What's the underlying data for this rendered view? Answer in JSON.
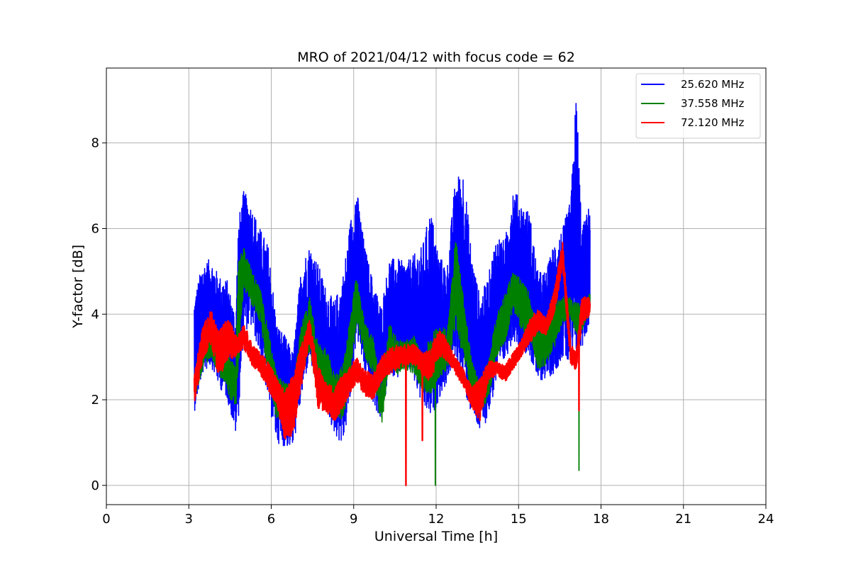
{
  "chart_data": {
    "type": "line",
    "title": "MRO of 2021/04/12 with focus code = 62",
    "xlabel": "Universal Time [h]",
    "ylabel": "Y-factor [dB]",
    "xlim": [
      0,
      24
    ],
    "ylim": [
      -0.45,
      9.75
    ],
    "xticks": [
      0,
      3,
      6,
      9,
      12,
      15,
      18,
      21,
      24
    ],
    "yticks": [
      0,
      2,
      4,
      6,
      8
    ],
    "grid": true,
    "legend_position": "top-right",
    "series": [
      {
        "name": "25.620 MHz",
        "color": "#0000ff",
        "x": [
          3.2,
          3.5,
          3.8,
          4.1,
          4.4,
          4.7,
          4.8,
          5.0,
          5.3,
          5.6,
          5.9,
          6.2,
          6.5,
          6.8,
          7.1,
          7.4,
          7.7,
          8.0,
          8.3,
          8.6,
          8.9,
          9.1,
          9.4,
          9.7,
          10.0,
          10.3,
          10.6,
          10.9,
          11.2,
          11.5,
          11.8,
          12.1,
          12.4,
          12.7,
          13.0,
          13.3,
          13.6,
          13.9,
          14.2,
          14.5,
          14.8,
          15.1,
          15.4,
          15.7,
          16.0,
          16.3,
          16.6,
          16.9,
          17.1,
          17.3,
          17.6
        ],
        "min": [
          1.7,
          2.6,
          2.8,
          2.3,
          2.0,
          1.2,
          1.5,
          3.6,
          3.7,
          3.0,
          1.9,
          1.0,
          0.9,
          0.9,
          2.0,
          3.0,
          1.9,
          1.7,
          1.2,
          0.9,
          2.0,
          3.5,
          2.6,
          1.9,
          1.5,
          2.6,
          2.5,
          2.8,
          2.4,
          1.8,
          1.5,
          2.0,
          2.4,
          3.0,
          2.2,
          1.6,
          1.2,
          1.6,
          2.4,
          2.9,
          3.4,
          3.2,
          3.0,
          2.4,
          2.5,
          2.6,
          3.0,
          2.7,
          3.0,
          3.2,
          3.8
        ],
        "max": [
          4.4,
          5.2,
          5.3,
          4.9,
          4.8,
          4.0,
          6.2,
          6.9,
          6.5,
          6.0,
          5.6,
          3.8,
          3.5,
          3.1,
          5.2,
          5.6,
          5.2,
          4.6,
          4.3,
          4.9,
          6.3,
          7.0,
          5.6,
          4.8,
          4.2,
          5.3,
          5.3,
          5.2,
          5.4,
          5.6,
          6.5,
          5.4,
          5.1,
          7.2,
          7.4,
          5.4,
          4.4,
          4.9,
          5.9,
          5.7,
          7.0,
          6.6,
          6.4,
          5.0,
          5.0,
          5.7,
          6.0,
          6.7,
          9.3,
          6.0,
          6.6
        ],
        "dips": []
      },
      {
        "name": "37.558 MHz",
        "color": "#008000",
        "x": [
          3.2,
          3.5,
          3.8,
          4.1,
          4.4,
          4.7,
          4.8,
          5.0,
          5.3,
          5.6,
          5.9,
          6.2,
          6.5,
          6.8,
          7.1,
          7.4,
          7.7,
          8.0,
          8.3,
          8.6,
          8.9,
          9.1,
          9.4,
          9.7,
          10.0,
          10.3,
          10.6,
          10.9,
          11.2,
          11.5,
          11.8,
          12.1,
          12.4,
          12.7,
          13.0,
          13.3,
          13.6,
          13.9,
          14.2,
          14.5,
          14.8,
          15.1,
          15.4,
          15.7,
          16.0,
          16.3,
          16.6,
          16.9,
          17.1,
          17.3,
          17.6
        ],
        "min": [
          2.0,
          2.7,
          3.0,
          2.6,
          2.2,
          1.7,
          2.6,
          4.6,
          4.2,
          3.8,
          2.5,
          1.5,
          1.5,
          1.4,
          2.6,
          3.1,
          2.1,
          2.0,
          1.6,
          1.5,
          2.5,
          3.8,
          3.0,
          2.6,
          1.3,
          2.8,
          2.6,
          2.7,
          2.6,
          2.2,
          2.1,
          2.5,
          2.7,
          3.6,
          3.0,
          2.0,
          1.7,
          2.0,
          3.0,
          3.3,
          4.1,
          3.6,
          3.5,
          2.7,
          2.8,
          3.2,
          3.8,
          3.9,
          3.5,
          3.6,
          4.0
        ],
        "max": [
          2.6,
          3.6,
          3.9,
          3.4,
          3.3,
          2.8,
          5.2,
          5.6,
          5.0,
          4.6,
          3.6,
          2.6,
          2.4,
          2.3,
          3.8,
          4.4,
          3.3,
          3.2,
          2.6,
          2.8,
          4.1,
          4.9,
          3.8,
          3.5,
          2.4,
          3.8,
          3.4,
          3.4,
          3.5,
          3.0,
          3.5,
          3.8,
          3.6,
          5.9,
          4.4,
          2.9,
          2.4,
          2.9,
          4.0,
          4.5,
          5.0,
          4.8,
          4.5,
          3.6,
          3.8,
          4.3,
          4.4,
          4.4,
          4.3,
          4.2,
          4.5
        ],
        "dips": [
          [
            11.97,
            0.0
          ],
          [
            17.2,
            0.35
          ]
        ]
      },
      {
        "name": "72.120 MHz",
        "color": "#ff0000",
        "x": [
          3.2,
          3.5,
          3.8,
          4.1,
          4.4,
          4.7,
          4.8,
          5.0,
          5.3,
          5.6,
          5.9,
          6.2,
          6.5,
          6.8,
          7.1,
          7.4,
          7.7,
          8.0,
          8.3,
          8.6,
          8.9,
          9.1,
          9.4,
          9.7,
          10.0,
          10.3,
          10.6,
          10.9,
          11.2,
          11.5,
          11.8,
          12.1,
          12.4,
          12.7,
          13.0,
          13.3,
          13.6,
          13.9,
          14.2,
          14.5,
          14.8,
          15.1,
          15.4,
          15.7,
          16.0,
          16.3,
          16.6,
          16.9,
          17.1,
          17.3,
          17.6
        ],
        "min": [
          1.9,
          2.9,
          3.3,
          2.5,
          2.9,
          3.0,
          3.1,
          3.2,
          2.8,
          2.6,
          2.2,
          1.9,
          1.0,
          1.2,
          2.3,
          3.4,
          1.8,
          1.7,
          1.5,
          1.8,
          2.2,
          2.4,
          2.1,
          2.0,
          2.4,
          2.6,
          2.7,
          2.8,
          2.8,
          2.6,
          2.4,
          3.0,
          2.9,
          2.6,
          2.3,
          1.8,
          1.5,
          2.4,
          2.6,
          2.4,
          2.7,
          3.0,
          3.3,
          3.6,
          3.5,
          4.0,
          5.1,
          2.8,
          2.7,
          3.7,
          4.0
        ],
        "max": [
          2.6,
          3.7,
          4.1,
          3.6,
          3.9,
          3.6,
          3.5,
          3.8,
          3.3,
          3.1,
          2.9,
          2.5,
          2.2,
          2.6,
          3.3,
          3.9,
          2.8,
          2.4,
          2.3,
          2.6,
          2.8,
          3.0,
          2.7,
          2.6,
          3.0,
          3.2,
          3.3,
          3.3,
          3.3,
          3.1,
          3.2,
          3.7,
          3.4,
          3.0,
          2.7,
          2.3,
          2.5,
          2.9,
          2.9,
          2.8,
          3.1,
          3.4,
          3.9,
          4.1,
          3.9,
          4.6,
          5.7,
          3.3,
          3.1,
          4.4,
          4.4
        ],
        "dips": [
          [
            10.9,
            0.0
          ],
          [
            11.5,
            1.05
          ],
          [
            17.2,
            1.75
          ]
        ]
      }
    ]
  }
}
